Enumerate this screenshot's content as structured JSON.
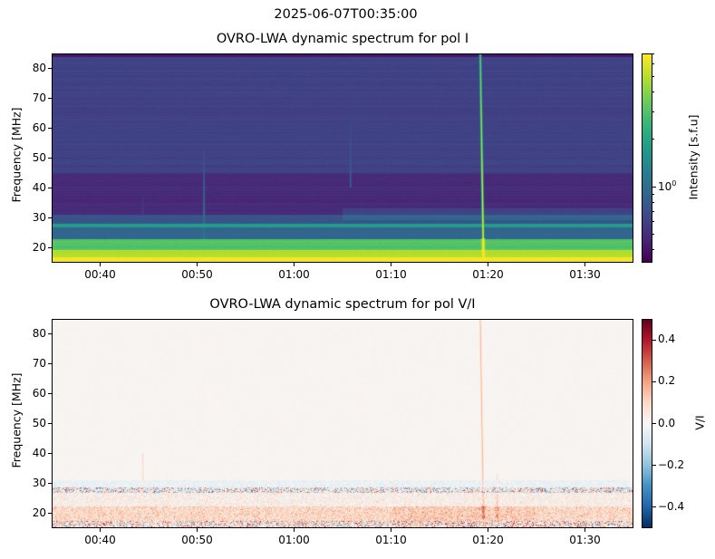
{
  "suptitle": "2025-06-07T00:35:00",
  "chart_data": [
    {
      "type": "heatmap",
      "title": "OVRO-LWA dynamic spectrum for pol I",
      "xlabel": "",
      "ylabel": "Frequency [MHz]",
      "xlim": [
        "00:35",
        "01:35"
      ],
      "ylim": [
        15,
        85
      ],
      "xticks": [
        "00:40",
        "00:50",
        "01:00",
        "01:10",
        "01:20",
        "01:30"
      ],
      "yticks": [
        20,
        30,
        40,
        50,
        60,
        70,
        80
      ],
      "colormap": "viridis",
      "colorbar": {
        "label": "Intensity [s.f.u]",
        "scale": "log",
        "range": [
          0.33,
          7.0
        ],
        "major_ticks": [
          {
            "value": 1,
            "label": "10",
            "exp": "0"
          }
        ],
        "minor_ticks": [
          0.4,
          0.5,
          0.6,
          0.7,
          0.8,
          0.9,
          2,
          3,
          4,
          5,
          6,
          7
        ]
      },
      "frequency_bands": [
        {
          "freq": [
            15,
            16.5
          ],
          "value": 6.5
        },
        {
          "freq": [
            16.5,
            19
          ],
          "value": 5.0
        },
        {
          "freq": [
            19,
            22.5
          ],
          "value": 3.0
        },
        {
          "freq": [
            22.5,
            26.5
          ],
          "value": 0.9
        },
        {
          "freq": [
            26.5,
            27.7
          ],
          "value": 1.8
        },
        {
          "freq": [
            27.7,
            31
          ],
          "value": 0.72
        },
        {
          "freq": [
            31,
            45
          ],
          "value": 0.48
        },
        {
          "freq": [
            45,
            84
          ],
          "value": 0.6
        },
        {
          "freq": [
            84,
            85
          ],
          "value": 0.4
        }
      ],
      "bursts": [
        {
          "time": "01:19:15",
          "time_low": "01:19:35",
          "freq": [
            15,
            85
          ],
          "value": 7.0
        },
        {
          "time": "00:50:40",
          "time_low": "00:50:40",
          "freq": [
            22,
            55
          ],
          "value": 1.2
        },
        {
          "time": "01:05:50",
          "time_low": "01:05:50",
          "freq": [
            40,
            85
          ],
          "value": 0.85
        },
        {
          "time": "00:44:20",
          "time_low": "00:44:20",
          "freq": [
            15,
            40
          ],
          "value": 0.9
        },
        {
          "time": "01:21:00",
          "time_low": "01:21:00",
          "freq": [
            15,
            30
          ],
          "value": 1.3
        }
      ]
    },
    {
      "type": "heatmap",
      "title": "OVRO-LWA dynamic spectrum for pol V/I",
      "xlabel": "",
      "ylabel": "Frequency [MHz]",
      "xlim": [
        "00:35",
        "01:35"
      ],
      "ylim": [
        15,
        85
      ],
      "xticks": [
        "00:40",
        "00:50",
        "01:00",
        "01:10",
        "01:20",
        "01:30"
      ],
      "yticks": [
        20,
        30,
        40,
        50,
        60,
        70,
        80
      ],
      "colormap": "RdBu_r",
      "colorbar": {
        "label": "V/I",
        "scale": "linear",
        "range": [
          -0.5,
          0.5
        ],
        "major_ticks": [
          {
            "value": 0.4,
            "label": "0.4"
          },
          {
            "value": 0.2,
            "label": "0.2"
          },
          {
            "value": 0.0,
            "label": "0.0"
          },
          {
            "value": -0.2,
            "label": "−0.2"
          },
          {
            "value": -0.4,
            "label": "−0.4"
          }
        ]
      },
      "frequency_bands": [
        {
          "freq": [
            15,
            17
          ],
          "value": 0.05,
          "noise": 0.35
        },
        {
          "freq": [
            17,
            22
          ],
          "value": 0.1,
          "noise": 0.12
        },
        {
          "freq": [
            22,
            26.5
          ],
          "value": 0.03,
          "noise": 0.1
        },
        {
          "freq": [
            26.5,
            28.5
          ],
          "value": 0.0,
          "noise": 0.35
        },
        {
          "freq": [
            28.5,
            31
          ],
          "value": -0.03,
          "noise": 0.06
        },
        {
          "freq": [
            31,
            85
          ],
          "value": 0.01,
          "noise": 0.01
        }
      ],
      "bursts": [
        {
          "time": "01:19:15",
          "time_low": "01:19:35",
          "freq": [
            18,
            85
          ],
          "value": 0.15
        },
        {
          "time": "01:21:00",
          "time_low": "01:21:00",
          "freq": [
            18,
            33
          ],
          "value": 0.08
        },
        {
          "time": "00:44:20",
          "time_low": "00:44:20",
          "freq": [
            28,
            40
          ],
          "value": 0.08
        }
      ]
    }
  ]
}
